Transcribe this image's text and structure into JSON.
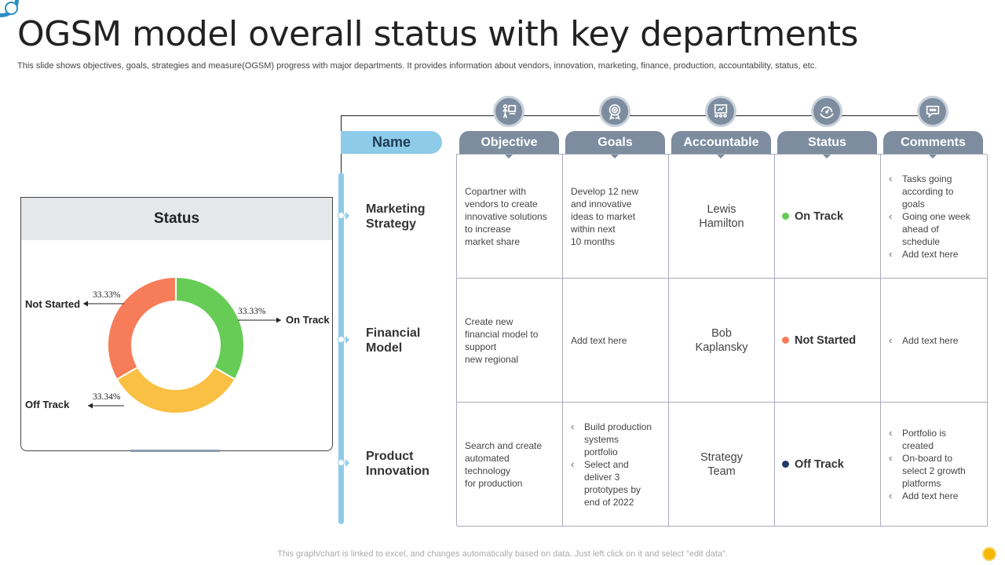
{
  "title": "OGSM model overall status with key departments",
  "subtitle": "This slide shows objectives, goals, strategies and measure(OGSM) progress with major departments. It provides information about vendors, innovation, marketing, finance, production, accountability, status, etc.",
  "footer": "This graph/chart is linked to excel,  and changes automatically based on data. Just left click on it and select “edit data”.",
  "status_panel": {
    "title": "Status"
  },
  "chart_data": {
    "type": "pie",
    "donut": true,
    "slices": [
      {
        "label": "On Track",
        "value": 33.33,
        "display": "33.33%",
        "color": "#66cc55"
      },
      {
        "label": "Off Track",
        "value": 33.34,
        "display": "33.34%",
        "color": "#f9c043"
      },
      {
        "label": "Not Started",
        "value": 33.33,
        "display": "33.33%",
        "color": "#f77c59"
      }
    ]
  },
  "table": {
    "name_header": "Name",
    "columns": [
      {
        "label": "Objective",
        "icon": "presentation-icon"
      },
      {
        "label": "Goals",
        "icon": "target-award-icon"
      },
      {
        "label": "Accountable",
        "icon": "board-meeting-icon"
      },
      {
        "label": "Status",
        "icon": "gauge-hands-icon"
      },
      {
        "label": "Comments",
        "icon": "chat-bubble-icon"
      }
    ],
    "rows": [
      {
        "name": [
          "Marketing",
          "Strategy"
        ],
        "objective": [
          "Copartner  with",
          "vendors  to create",
          "innovative  solutions",
          "to increase",
          "market share"
        ],
        "goals": [
          "Develop  12 new",
          "and innovative",
          "ideas to market",
          "within next",
          "10 months"
        ],
        "accountable": [
          "Lewis",
          "Hamilton"
        ],
        "status": {
          "label": "On Track",
          "color": "#66cc55"
        },
        "comments": [
          [
            "Tasks going",
            "according to",
            "goals"
          ],
          [
            "Going one week",
            "ahead of",
            "schedule"
          ],
          [
            "Add text here"
          ]
        ]
      },
      {
        "name": [
          "Financial",
          "Model"
        ],
        "objective": [
          "Create  new",
          "financial model to",
          "support",
          "new regional"
        ],
        "goals": [
          "Add text here"
        ],
        "accountable": [
          "Bob",
          "Kaplansky"
        ],
        "status": {
          "label": "Not Started",
          "color": "#f77c59"
        },
        "comments": [
          [
            "Add text here"
          ]
        ]
      },
      {
        "name": [
          "Product",
          "Innovation"
        ],
        "objective": [
          "Search and create",
          "automated",
          "technology",
          "for production"
        ],
        "goals_list": [
          [
            "Build production",
            "systems",
            "portfolio"
          ],
          [
            "Select and",
            "deliver  3",
            "prototypes by",
            "end of 2022"
          ]
        ],
        "accountable": [
          "Strategy",
          "Team"
        ],
        "status": {
          "label": "Off Track",
          "color": "#1f3a66"
        },
        "comments": [
          [
            "Portfolio is",
            "created"
          ],
          [
            "On-board  to",
            "select 2 growth",
            "platforms"
          ],
          [
            "Add text here"
          ]
        ]
      }
    ]
  }
}
